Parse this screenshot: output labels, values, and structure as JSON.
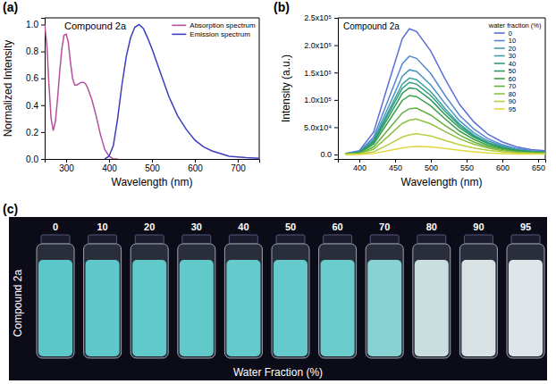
{
  "chart_data": [
    {
      "type": "line",
      "panel_label": "(a)",
      "annotation": "Compound 2a",
      "x_label": "Wavelength (nm)",
      "y_label": "Normalized Intensity",
      "xlim": [
        250,
        750
      ],
      "xticks": [
        300,
        400,
        500,
        600,
        700
      ],
      "ylim": [
        0,
        1.05
      ],
      "yticks": [
        {
          "value": 0,
          "label": "0.0"
        },
        {
          "value": 0.2,
          "label": "0.2"
        },
        {
          "value": 0.4,
          "label": "0.4"
        },
        {
          "value": 0.6,
          "label": "0.6"
        },
        {
          "value": 0.8,
          "label": "0.8"
        },
        {
          "value": 1.0,
          "label": "1.0"
        }
      ],
      "legend": "upper right",
      "series": [
        {
          "name": "Absorption spectrum",
          "color": "#b5509f",
          "x": [
            250,
            255,
            260,
            265,
            270,
            275,
            280,
            285,
            290,
            295,
            300,
            305,
            310,
            315,
            320,
            325,
            330,
            335,
            340,
            345,
            350,
            360,
            370,
            380,
            390,
            400,
            410,
            420
          ],
          "values": [
            1.0,
            0.85,
            0.55,
            0.3,
            0.21,
            0.28,
            0.45,
            0.65,
            0.82,
            0.92,
            0.93,
            0.87,
            0.72,
            0.6,
            0.55,
            0.55,
            0.56,
            0.57,
            0.57,
            0.56,
            0.53,
            0.44,
            0.32,
            0.18,
            0.07,
            0.02,
            0.0,
            0.0
          ]
        },
        {
          "name": "Emission spectrum",
          "color": "#3d3dbd",
          "x": [
            390,
            400,
            410,
            420,
            430,
            440,
            450,
            460,
            470,
            480,
            490,
            500,
            520,
            540,
            560,
            580,
            600,
            620,
            640,
            660,
            680,
            700,
            720,
            750
          ],
          "values": [
            0,
            0.02,
            0.1,
            0.3,
            0.55,
            0.76,
            0.9,
            0.98,
            1.0,
            0.97,
            0.9,
            0.82,
            0.64,
            0.46,
            0.32,
            0.22,
            0.14,
            0.09,
            0.06,
            0.04,
            0.02,
            0.015,
            0.01,
            0.005
          ]
        }
      ]
    },
    {
      "type": "line",
      "panel_label": "(b)",
      "annotation": "Compound 2a",
      "x_label": "Wavelength (nm)",
      "y_label": "Intensity (a.u.)",
      "xlim": [
        370,
        660
      ],
      "xticks": [
        400,
        450,
        500,
        550,
        600,
        650
      ],
      "ylim": [
        -8000,
        250000
      ],
      "yticks": [
        {
          "value": 0,
          "label": "0.0"
        },
        {
          "value": 50000,
          "label": "5.0x10⁴"
        },
        {
          "value": 100000,
          "label": "1.0x10⁵"
        },
        {
          "value": 150000,
          "label": "1.5x10⁵"
        },
        {
          "value": 200000,
          "label": "2.0x10⁵"
        },
        {
          "value": 250000,
          "label": "2.5x10⁵"
        }
      ],
      "legend": "upper right",
      "legend_title": "water fraction (%)",
      "x": [
        380,
        400,
        420,
        440,
        460,
        470,
        480,
        500,
        520,
        540,
        560,
        580,
        600,
        620,
        640,
        660
      ],
      "series": [
        {
          "name": "0",
          "color": "#5a6fd6",
          "values": [
            2000,
            7000,
            41000,
            127000,
            212000,
            230000,
            225000,
            189000,
            138000,
            92000,
            60000,
            37000,
            23000,
            14000,
            9000,
            7000
          ]
        },
        {
          "name": "10",
          "color": "#5487d2",
          "values": [
            2000,
            5000,
            32000,
            99000,
            166000,
            180000,
            176000,
            148000,
            108000,
            72000,
            47000,
            29000,
            18000,
            11000,
            7000,
            5000
          ]
        },
        {
          "name": "20",
          "color": "#4896bf",
          "values": [
            2000,
            5000,
            28000,
            85000,
            143000,
            155000,
            152000,
            127000,
            93000,
            62000,
            40000,
            25000,
            16000,
            9000,
            6000,
            5000
          ]
        },
        {
          "name": "30",
          "color": "#3aa0a0",
          "values": [
            1000,
            4000,
            25000,
            77000,
            129000,
            140000,
            137000,
            115000,
            84000,
            56000,
            36000,
            22000,
            14000,
            8000,
            6000,
            4000
          ]
        },
        {
          "name": "40",
          "color": "#2e9e7e",
          "values": [
            1000,
            4000,
            24000,
            73000,
            121000,
            132000,
            129000,
            108000,
            79000,
            53000,
            34000,
            21000,
            13000,
            8000,
            5000,
            4000
          ]
        },
        {
          "name": "50",
          "color": "#2c9a5e",
          "values": [
            1000,
            4000,
            22000,
            67000,
            112000,
            122000,
            120000,
            100000,
            73000,
            49000,
            32000,
            20000,
            12000,
            7000,
            5000,
            4000
          ]
        },
        {
          "name": "60",
          "color": "#3aa04a",
          "values": [
            1000,
            3000,
            19000,
            59000,
            99000,
            108000,
            106000,
            89000,
            65000,
            43000,
            28000,
            17000,
            11000,
            6000,
            4000,
            3000
          ]
        },
        {
          "name": "70",
          "color": "#62b040",
          "values": [
            1000,
            2000,
            14000,
            45000,
            76000,
            84000,
            85000,
            72000,
            53000,
            36000,
            23000,
            14000,
            9000,
            5000,
            3000,
            3000
          ]
        },
        {
          "name": "80",
          "color": "#8cc040",
          "values": [
            1000,
            2000,
            10000,
            33000,
            57000,
            63000,
            65000,
            56000,
            42000,
            29000,
            19000,
            12000,
            7000,
            4000,
            3000,
            2000
          ]
        },
        {
          "name": "90",
          "color": "#b8d040",
          "values": [
            0,
            1000,
            5000,
            18000,
            32000,
            36000,
            38000,
            34000,
            26000,
            18000,
            12000,
            8000,
            5000,
            3000,
            2000,
            1000
          ]
        },
        {
          "name": "95",
          "color": "#e0d840",
          "values": [
            0,
            0,
            2000,
            7000,
            12000,
            14000,
            15000,
            14000,
            11000,
            8000,
            5000,
            3000,
            2000,
            1000,
            1000,
            1000
          ]
        }
      ]
    }
  ],
  "photo": {
    "panel_label": "(c)",
    "label": "Compound 2a",
    "x_label": "Water Fraction (%)",
    "water_fractions": [
      0,
      10,
      20,
      30,
      40,
      50,
      60,
      70,
      80,
      90,
      95
    ],
    "vial_colors": [
      "#5cc7c9",
      "#5ec8ca",
      "#60c9ca",
      "#62c9cb",
      "#64cacb",
      "#66cacc",
      "#6bcccd",
      "#86d2d2",
      "#c8dedf",
      "#d9e2e4",
      "#dde5e8"
    ]
  }
}
